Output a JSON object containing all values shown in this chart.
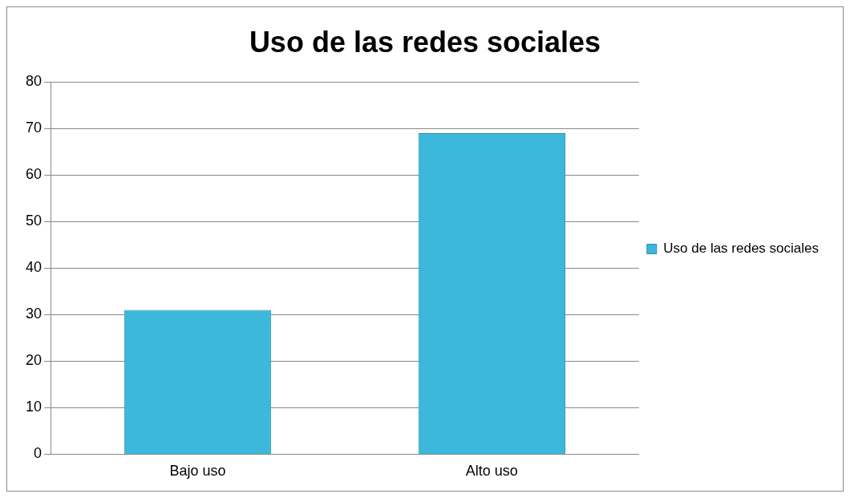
{
  "chart_data": {
    "type": "bar",
    "title": "Uso de las redes sociales",
    "categories": [
      "Bajo uso",
      "Alto uso"
    ],
    "series": [
      {
        "name": "Uso de las redes sociales",
        "color": "#3bb8dc",
        "values": [
          31,
          69
        ]
      }
    ],
    "ylim": [
      0,
      80
    ],
    "yticks": [
      0,
      10,
      20,
      30,
      40,
      50,
      60,
      70,
      80
    ],
    "grid": "y",
    "legend": "right"
  }
}
